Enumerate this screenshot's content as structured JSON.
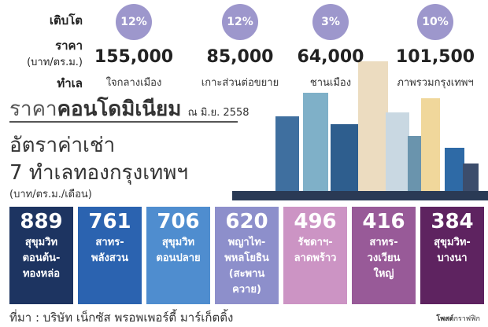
{
  "labels": {
    "growth": "เติบโต",
    "price": "ราคา",
    "price_unit": "(บาท/ตร.ม.)",
    "location": "ทำเล"
  },
  "zones": [
    {
      "growth": "12%",
      "price": "155,000",
      "area": "ใจกลางเมือง"
    },
    {
      "growth": "12%",
      "price": "85,000",
      "area": "เกาะส่วนต่อขยาย"
    },
    {
      "growth": "3%",
      "price": "64,000",
      "area": "ชานเมือง"
    },
    {
      "growth": "10%",
      "price": "101,500",
      "area": "ภาพรวมกรุงเทพฯ"
    }
  ],
  "title": {
    "prefix": "ราคา",
    "main": "คอนโดมิเนียม",
    "date": "ณ มิ.ย. 2558"
  },
  "rent": {
    "title1": "อัตราค่าเช่า",
    "title2": "7 ทำเลทองกรุงเทพฯ",
    "unit": "(บาท/ตร.ม./เดือน)"
  },
  "rents": [
    {
      "value": "889",
      "name": "สุขุมวิท\nตอนต้น-\nทองหล่อ",
      "color": "#1d3461"
    },
    {
      "value": "761",
      "name": "สาทร-\nพลังสวน",
      "color": "#2b63b0"
    },
    {
      "value": "706",
      "name": "สุขุมวิท\nตอนปลาย",
      "color": "#4f8dcf"
    },
    {
      "value": "620",
      "name": "พญาไท-\nพหลโยธิน\n(สะพาน\nควาย)",
      "color": "#8d8fcb"
    },
    {
      "value": "496",
      "name": "รัชดาฯ-\nลาดพร้าว",
      "color": "#cc94c4"
    },
    {
      "value": "416",
      "name": "สาทร-\nวงเวียน\nใหญ่",
      "color": "#985a98"
    },
    {
      "value": "384",
      "name": "สุขุมวิท-\nบางนา",
      "color": "#5e2360"
    }
  ],
  "source": "ที่มา : บริษัท เน็กซัส พรอพเพอร์ตี้ มาร์เก็ตติ้ง",
  "credit": {
    "bold": "โพสต์",
    "rest": "กราฟฟิก"
  }
}
